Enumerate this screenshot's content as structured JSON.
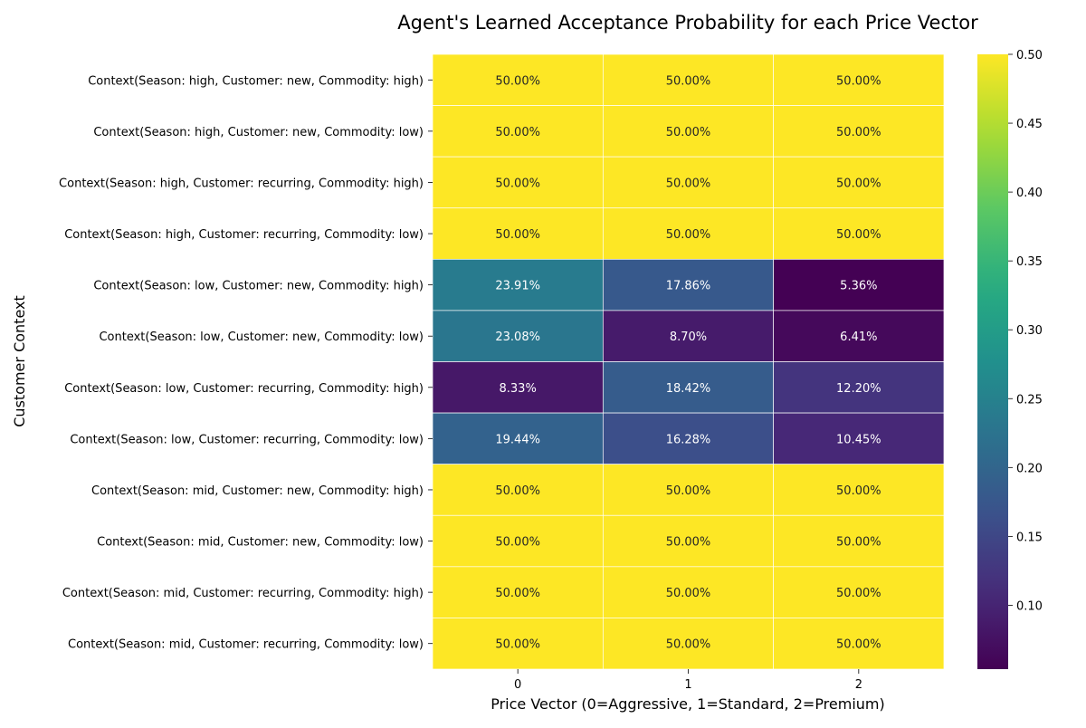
{
  "chart_data": {
    "type": "heatmap",
    "title": "Agent's Learned Acceptance Probability for each Price Vector",
    "xlabel": "Price Vector (0=Aggressive, 1=Standard, 2=Premium)",
    "ylabel": "Customer Context",
    "x_categories": [
      "0",
      "1",
      "2"
    ],
    "y_categories": [
      "Context(Season: high, Customer: new, Commodity: high)",
      "Context(Season: high, Customer: new, Commodity: low)",
      "Context(Season: high, Customer: recurring, Commodity: high)",
      "Context(Season: high, Customer: recurring, Commodity: low)",
      "Context(Season: low, Customer: new, Commodity: high)",
      "Context(Season: low, Customer: new, Commodity: low)",
      "Context(Season: low, Customer: recurring, Commodity: high)",
      "Context(Season: low, Customer: recurring, Commodity: low)",
      "Context(Season: mid, Customer: new, Commodity: high)",
      "Context(Season: mid, Customer: new, Commodity: low)",
      "Context(Season: mid, Customer: recurring, Commodity: high)",
      "Context(Season: mid, Customer: recurring, Commodity: low)"
    ],
    "values": [
      [
        0.5,
        0.5,
        0.5
      ],
      [
        0.5,
        0.5,
        0.5
      ],
      [
        0.5,
        0.5,
        0.5
      ],
      [
        0.5,
        0.5,
        0.5
      ],
      [
        0.2391,
        0.1786,
        0.0536
      ],
      [
        0.2308,
        0.087,
        0.0641
      ],
      [
        0.0833,
        0.1842,
        0.122
      ],
      [
        0.1944,
        0.1628,
        0.1045
      ],
      [
        0.5,
        0.5,
        0.5
      ],
      [
        0.5,
        0.5,
        0.5
      ],
      [
        0.5,
        0.5,
        0.5
      ],
      [
        0.5,
        0.5,
        0.5
      ]
    ],
    "cell_labels": [
      [
        "50.00%",
        "50.00%",
        "50.00%"
      ],
      [
        "50.00%",
        "50.00%",
        "50.00%"
      ],
      [
        "50.00%",
        "50.00%",
        "50.00%"
      ],
      [
        "50.00%",
        "50.00%",
        "50.00%"
      ],
      [
        "23.91%",
        "17.86%",
        "5.36%"
      ],
      [
        "23.08%",
        "8.70%",
        "6.41%"
      ],
      [
        "8.33%",
        "18.42%",
        "12.20%"
      ],
      [
        "19.44%",
        "16.28%",
        "10.45%"
      ],
      [
        "50.00%",
        "50.00%",
        "50.00%"
      ],
      [
        "50.00%",
        "50.00%",
        "50.00%"
      ],
      [
        "50.00%",
        "50.00%",
        "50.00%"
      ],
      [
        "50.00%",
        "50.00%",
        "50.00%"
      ]
    ],
    "colormap": "viridis",
    "colorbar": {
      "vmin": 0.0536,
      "vmax": 0.5,
      "ticks": [
        0.1,
        0.15,
        0.2,
        0.25,
        0.3,
        0.35,
        0.4,
        0.45,
        0.5
      ],
      "tick_labels": [
        "0.10",
        "0.15",
        "0.20",
        "0.25",
        "0.30",
        "0.35",
        "0.40",
        "0.45",
        "0.50"
      ]
    },
    "grid": true
  }
}
